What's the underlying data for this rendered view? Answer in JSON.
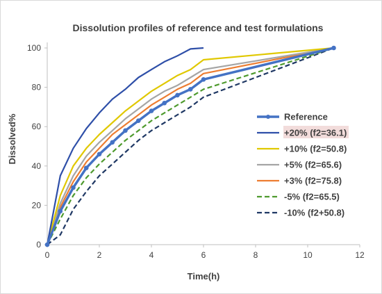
{
  "chart_data": {
    "type": "line",
    "title": "Dissolution profiles of reference and test formulations",
    "xlabel": "Time(h)",
    "ylabel": "Dissolved%",
    "xlim": [
      0,
      12
    ],
    "ylim": [
      0,
      100
    ],
    "xticks": [
      0,
      2,
      4,
      6,
      8,
      10,
      12
    ],
    "yticks": [
      0,
      20,
      40,
      60,
      80,
      100
    ],
    "grid": false,
    "legend_position": "right",
    "series": [
      {
        "name": "Reference",
        "color": "#4472c4",
        "style": "solid-thick-markers",
        "x": [
          0,
          0.5,
          1,
          1.5,
          2,
          2.5,
          3,
          3.5,
          4,
          4.5,
          5,
          5.5,
          6,
          11
        ],
        "y": [
          0,
          17,
          29,
          39,
          46,
          52,
          58,
          63,
          68,
          72,
          76,
          79,
          84,
          100
        ]
      },
      {
        "name": "+20% (f2=36.1)",
        "color": "#2e4fa8",
        "style": "solid",
        "highlight": true,
        "x": [
          0,
          0.5,
          1,
          1.5,
          2,
          2.5,
          3,
          3.5,
          4,
          4.5,
          5,
          5.5,
          6
        ],
        "y": [
          0,
          35,
          49,
          59,
          67,
          74,
          79,
          85,
          89,
          93,
          96,
          99.5,
          100
        ]
      },
      {
        "name": "+10% (f2=50.8)",
        "color": "#e0c800",
        "style": "solid",
        "x": [
          0,
          0.5,
          1,
          1.5,
          2,
          2.5,
          3,
          3.5,
          4,
          4.5,
          5,
          5.5,
          6,
          11
        ],
        "y": [
          0,
          25,
          40,
          49,
          56,
          62,
          68,
          73,
          78,
          82,
          86,
          89,
          94,
          100
        ]
      },
      {
        "name": "+5% (f2=65.6)",
        "color": "#a5a5a5",
        "style": "solid",
        "x": [
          0,
          0.5,
          1,
          1.5,
          2,
          2.5,
          3,
          3.5,
          4,
          4.5,
          5,
          5.5,
          6,
          11
        ],
        "y": [
          0,
          21,
          35,
          45,
          52,
          58,
          64,
          69,
          74,
          78,
          81,
          85,
          89,
          100
        ]
      },
      {
        "name": "+3% (f2=75.8)",
        "color": "#ed7d31",
        "style": "solid",
        "x": [
          0,
          0.5,
          1,
          1.5,
          2,
          2.5,
          3,
          3.5,
          4,
          4.5,
          5,
          5.5,
          6,
          11
        ],
        "y": [
          0,
          19,
          32,
          42,
          49,
          56,
          61,
          66,
          71,
          75,
          79,
          82,
          87,
          100
        ]
      },
      {
        "name": "-5% (f2=65.5)",
        "color": "#4e9a2d",
        "style": "dashed",
        "x": [
          0,
          0.5,
          1,
          1.5,
          2,
          2.5,
          3,
          3.5,
          4,
          4.5,
          5,
          5.5,
          6,
          11
        ],
        "y": [
          0,
          13,
          25,
          34,
          41,
          47,
          53,
          58,
          63,
          67,
          71,
          75,
          79,
          100
        ]
      },
      {
        "name": "-10% (f2+50.8)",
        "color": "#1f3864",
        "style": "dashed",
        "x": [
          0,
          0.5,
          1,
          1.5,
          2,
          2.5,
          3,
          3.5,
          4,
          4.5,
          5,
          5.5,
          6,
          11
        ],
        "y": [
          0,
          5,
          18,
          27,
          35,
          41,
          47,
          53,
          58,
          62,
          66,
          70,
          75,
          100
        ]
      }
    ]
  }
}
